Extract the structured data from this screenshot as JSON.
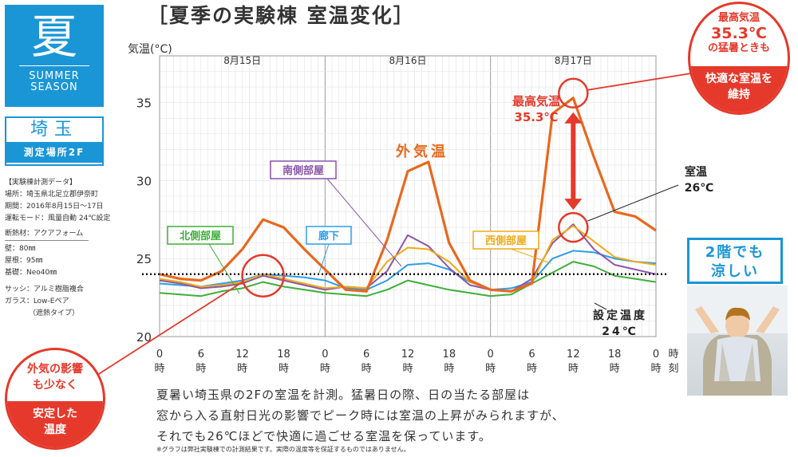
{
  "season": {
    "kanji": "夏",
    "english_line1": "SUMMER",
    "english_line2": "SEASON"
  },
  "place": {
    "name": "埼玉",
    "sub": "測定場所2F"
  },
  "info": {
    "heading": "【実験棟計測データ】",
    "location": "場所：埼玉県北足立郡伊奈町",
    "period": "期間：2016年8月15日～17日",
    "mode": "運転モード：風量自動 24℃設定",
    "insulation": "断熱材：アクアフォーム",
    "wall": "壁：80㎜",
    "roof": "屋根：95㎜",
    "base": "基礎：Neo40㎜",
    "sash": "サッシ：アルミ樹脂複合",
    "glass": "ガラス：Low-Eペア",
    "glass_sub": "（遮熱タイプ）"
  },
  "title": "［夏季の実験棟 室温変化］",
  "badge_max": {
    "line1": "最高気温",
    "line2": "35.3℃",
    "line3": "の猛暑ときも",
    "bottom1": "快適な室温を",
    "bottom2": "維持"
  },
  "badge_effect": {
    "line1": "外気の影響",
    "line2": "も少なく",
    "bottom1": "安定した",
    "bottom2": "温度"
  },
  "photo_label": {
    "line1": "2階でも",
    "line2": "涼しい"
  },
  "description": {
    "line1": "夏暑い埼玉県の2Fの室温を計測。猛暑日の際、日の当たる部屋は",
    "line2": "窓から入る直射日光の影響でピーク時には室温の上昇がみられますが、",
    "line3": "それでも26℃ほどで快適に過ごせる室温を保っています。"
  },
  "footnote": "※グラフは弊社実験棟での計測結果です。実際の温度等を保証するものではありません。",
  "colors": {
    "outdoor": "#e8681d",
    "south": "#8a55a8",
    "west": "#f0aa16",
    "north": "#3fae3b",
    "hallway": "#2d9ee6",
    "accent": "#e5392b",
    "brand": "#1a96d6"
  },
  "chart_data": {
    "type": "line",
    "ylabel": "気温(°C)",
    "xlabel": "時刻",
    "ylim": [
      20,
      38
    ],
    "yticks": [
      20,
      25,
      30,
      35
    ],
    "days": [
      "8月15日",
      "8月16日",
      "8月17日"
    ],
    "x_tick_labels": [
      "0時",
      "6時",
      "12時",
      "18時",
      "0時",
      "6時",
      "12時",
      "18時",
      "0時",
      "6時",
      "12時",
      "18時",
      "0時"
    ],
    "x": [
      0,
      3,
      6,
      9,
      12,
      15,
      18,
      21,
      24,
      27,
      30,
      33,
      36,
      39,
      42,
      45,
      48,
      51,
      54,
      57,
      60,
      63,
      66,
      69,
      72
    ],
    "series": [
      {
        "name": "外気温",
        "values": [
          24.0,
          23.7,
          23.6,
          24.2,
          25.6,
          27.5,
          27.0,
          25.6,
          24.3,
          23.0,
          22.9,
          26.2,
          30.6,
          31.2,
          26.0,
          23.6,
          23.0,
          22.9,
          23.4,
          34.3,
          35.3,
          31.5,
          28.0,
          27.7,
          26.8
        ]
      },
      {
        "name": "南側部屋",
        "values": [
          23.6,
          23.4,
          23.1,
          23.2,
          23.4,
          23.9,
          23.6,
          23.3,
          23.0,
          23.2,
          23.1,
          24.2,
          26.5,
          25.8,
          24.4,
          23.3,
          23.0,
          22.9,
          23.7,
          26.0,
          27.2,
          25.6,
          24.6,
          24.3,
          24.0
        ]
      },
      {
        "name": "西側部屋",
        "values": [
          23.7,
          23.5,
          23.2,
          23.3,
          23.5,
          24.0,
          23.7,
          23.4,
          23.1,
          23.2,
          23.1,
          24.8,
          25.7,
          25.6,
          24.8,
          23.5,
          23.0,
          22.9,
          23.4,
          26.2,
          27.1,
          26.1,
          25.1,
          24.8,
          24.6
        ]
      },
      {
        "name": "北側部屋",
        "values": [
          22.8,
          22.7,
          22.6,
          22.9,
          23.1,
          23.5,
          23.2,
          23.0,
          22.8,
          22.7,
          22.6,
          23.0,
          23.6,
          23.3,
          23.0,
          22.8,
          22.6,
          22.7,
          23.4,
          24.1,
          24.8,
          24.5,
          23.9,
          23.7,
          23.5
        ]
      },
      {
        "name": "廊下",
        "values": [
          23.4,
          23.3,
          23.2,
          23.4,
          23.6,
          24.0,
          23.9,
          23.8,
          23.6,
          23.1,
          23.0,
          23.6,
          24.6,
          24.7,
          24.3,
          23.5,
          23.0,
          23.1,
          23.5,
          25.0,
          25.5,
          25.4,
          25.0,
          24.8,
          24.7
        ]
      }
    ],
    "setpoint": {
      "value": 24,
      "label_line1": "設定温度",
      "label_line2": "24℃"
    },
    "annotations": {
      "max_line1": "最高気温",
      "max_line2": "35.3℃",
      "room_line1": "室温",
      "room_line2": "26℃"
    },
    "grid": true
  }
}
